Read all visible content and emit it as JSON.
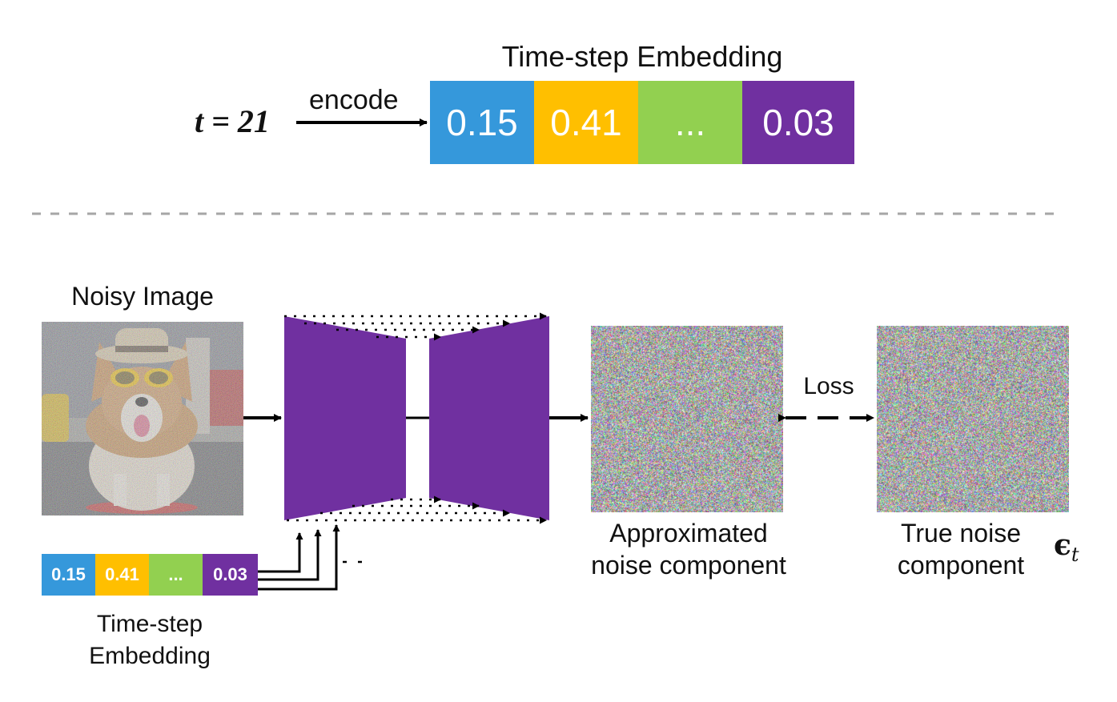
{
  "top": {
    "t_label": "t = 21",
    "encode_label": "encode",
    "embedding_title": "Time-step Embedding",
    "cells": [
      {
        "text": "0.15",
        "color": "#3598DB"
      },
      {
        "text": "0.41",
        "color": "#FFBF00"
      },
      {
        "text": "...",
        "color": "#92D050"
      },
      {
        "text": "0.03",
        "color": "#7030A0"
      }
    ]
  },
  "bottom": {
    "noisy_image_label": "Noisy Image",
    "embedding_label_line1": "Time-step",
    "embedding_label_line2": "Embedding",
    "small_cells": [
      {
        "text": "0.15",
        "color": "#3598DB"
      },
      {
        "text": "0.41",
        "color": "#FFBF00"
      },
      {
        "text": "...",
        "color": "#92D050"
      },
      {
        "text": "0.03",
        "color": "#7030A0"
      }
    ],
    "unet_color": "#7030A0",
    "approx_label_line1": "Approximated",
    "approx_label_line2": "noise component",
    "loss_label": "Loss",
    "true_label_line1": "True noise",
    "true_label_line2": "component",
    "epsilon_symbol": "ϵ",
    "epsilon_subscript": "t"
  }
}
